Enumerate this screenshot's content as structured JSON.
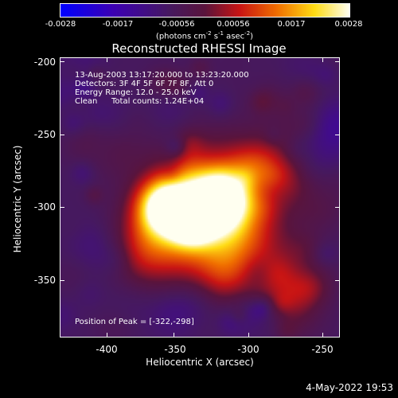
{
  "colorbar": {
    "ticks": [
      "-0.0028",
      "-0.0017",
      "-0.00056",
      "0.00056",
      "0.0017",
      "0.0028"
    ],
    "units_main": "(photons cm",
    "units_sup1": "-2",
    "units_mid1": " s",
    "units_sup2": "-1",
    "units_mid2": " asec",
    "units_sup3": "-2",
    "units_end": ")"
  },
  "plot": {
    "title": "Reconstructed RHESSI Image",
    "annotation": {
      "time_range": "13-Aug-2003 13:17:20.000 to 13:23:20.000",
      "detectors": "Detectors: 3F 4F 5F 6F 7F 8F, Att 0",
      "energy_range": "Energy Range: 12.0 - 25.0 keV",
      "method": "Clean",
      "total_counts": "Total counts: 1.24E+04"
    },
    "peak_position": "Position of Peak = [-322,-298]"
  },
  "axes": {
    "xlabel": "Heliocentric X (arcsec)",
    "ylabel": "Heliocentric Y (arcsec)",
    "xticks": [
      "-400",
      "-350",
      "-300",
      "-250"
    ],
    "yticks": [
      "-200",
      "-250",
      "-300",
      "-350"
    ]
  },
  "footer": {
    "date": "4-May-2022 19:53"
  }
}
